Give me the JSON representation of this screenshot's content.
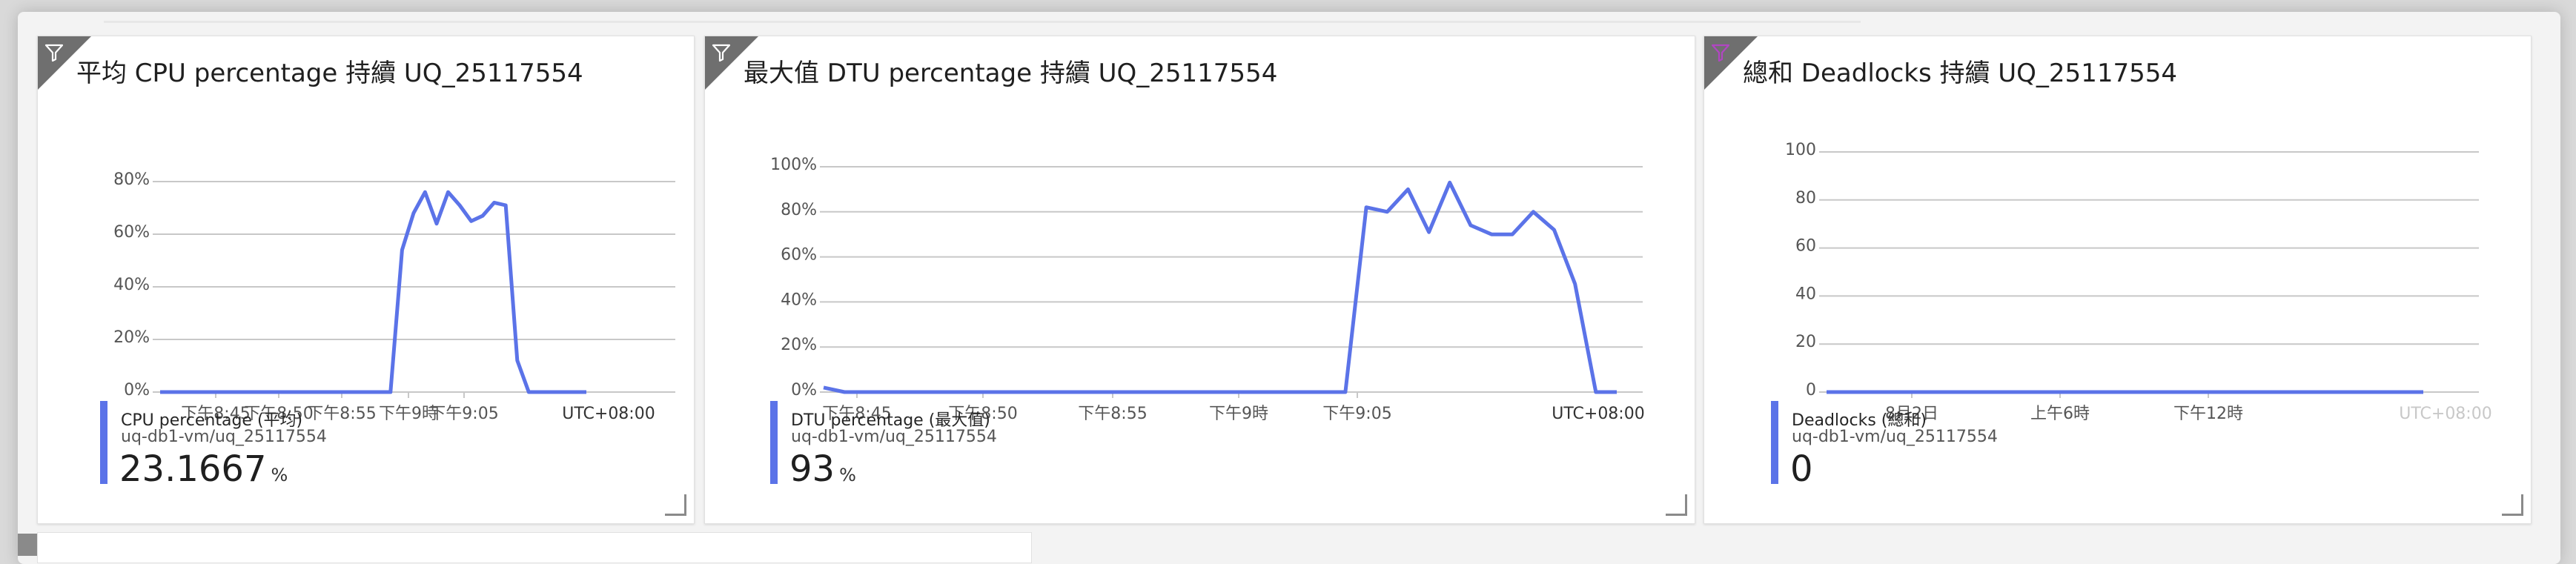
{
  "tiles": [
    {
      "title": "平均 CPU percentage 持續 UQ_25117554",
      "legend": {
        "name": "CPU percentage (平均)",
        "resource": "uq-db1-vm/uq_25117554",
        "value": "23.1667",
        "unit": "%"
      },
      "colors": {
        "line": "#5b73e8",
        "corner": "#6f6f6f"
      },
      "icon": "filter-icon"
    },
    {
      "title": "最大值 DTU percentage 持續 UQ_25117554",
      "legend": {
        "name": "DTU percentage (最大值)",
        "resource": "uq-db1-vm/uq_25117554",
        "value": "93",
        "unit": "%"
      },
      "colors": {
        "line": "#5b73e8",
        "corner": "#6f6f6f"
      },
      "icon": "filter-icon"
    },
    {
      "title": "總和 Deadlocks 持續 UQ_25117554",
      "legend": {
        "name": "Deadlocks (總和)",
        "resource": "uq-db1-vm/uq_25117554",
        "value": "0",
        "unit": ""
      },
      "colors": {
        "line": "#5b73e8",
        "corner": "#6f6f6f",
        "filter": "#b146c2"
      },
      "icon": "filter-icon"
    }
  ],
  "chart_data": [
    {
      "type": "line",
      "y_ticks": [
        "0%",
        "20%",
        "40%",
        "60%",
        "80%"
      ],
      "ylim": [
        0,
        80
      ],
      "x_ticks": [
        "下午8:45",
        "下午8:50",
        "下午8:55",
        "下午9時",
        "下午9:05"
      ],
      "timezone": "UTC+08:00",
      "series": [
        {
          "x": [
            0,
            1,
            2,
            3,
            4,
            5,
            6,
            7,
            8,
            9,
            10,
            11,
            12,
            13,
            14,
            15,
            16,
            17,
            18,
            19,
            20,
            21,
            22,
            23,
            24,
            25,
            26,
            27,
            28,
            29,
            30,
            31,
            32,
            33,
            34,
            35,
            36,
            37
          ],
          "values": [
            0,
            0,
            0,
            0,
            0,
            0,
            0,
            0,
            0,
            0,
            0,
            0,
            0,
            0,
            0,
            0,
            0,
            0,
            0,
            0,
            0,
            54,
            68,
            76,
            64,
            76,
            71,
            65,
            67,
            72,
            71,
            12,
            0,
            0,
            0,
            0,
            0,
            0
          ]
        }
      ]
    },
    {
      "type": "line",
      "y_ticks": [
        "0%",
        "20%",
        "40%",
        "60%",
        "80%",
        "100%"
      ],
      "ylim": [
        0,
        100
      ],
      "x_ticks": [
        "下午8:45",
        "下午8:50",
        "下午8:55",
        "下午9時",
        "下午9:05"
      ],
      "timezone": "UTC+08:00",
      "series": [
        {
          "x": [
            0,
            1,
            2,
            3,
            4,
            5,
            6,
            7,
            8,
            9,
            10,
            11,
            12,
            13,
            14,
            15,
            16,
            17,
            18,
            19,
            20,
            21,
            22,
            23,
            24,
            25,
            26,
            27,
            28,
            29,
            30,
            31,
            32,
            33,
            34,
            35,
            36,
            37,
            38
          ],
          "values": [
            2,
            0,
            0,
            0,
            0,
            0,
            0,
            0,
            0,
            0,
            0,
            0,
            0,
            0,
            0,
            0,
            0,
            0,
            0,
            0,
            0,
            0,
            0,
            0,
            0,
            0,
            82,
            80,
            90,
            71,
            93,
            74,
            70,
            70,
            80,
            72,
            48,
            0,
            0
          ]
        }
      ]
    },
    {
      "type": "line",
      "y_ticks": [
        "0",
        "20",
        "40",
        "60",
        "80",
        "100"
      ],
      "ylim": [
        0,
        100
      ],
      "x_ticks": [
        "8月2日",
        "上午6時",
        "下午12時"
      ],
      "timezone": "UTC+08:00",
      "series": [
        {
          "x": [
            0,
            1
          ],
          "values": [
            0,
            0
          ]
        }
      ]
    }
  ]
}
